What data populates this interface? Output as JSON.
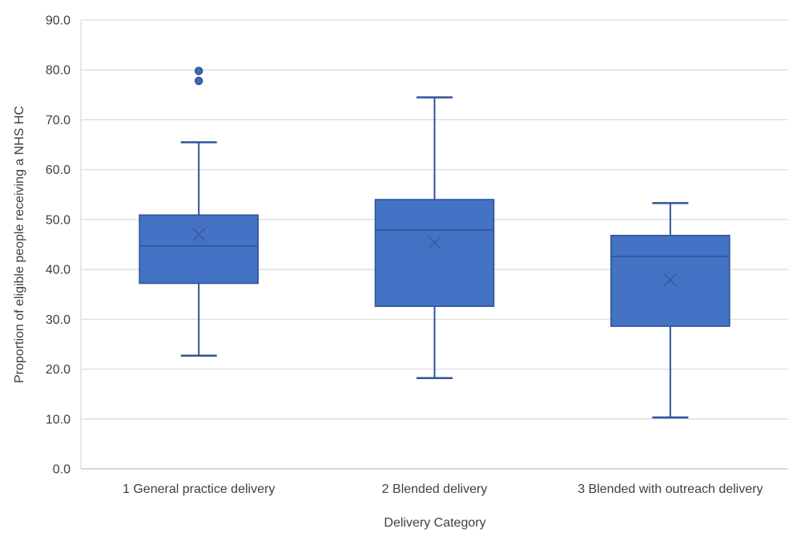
{
  "chart_data": {
    "type": "box",
    "title": "",
    "xlabel": "Delivery Category",
    "ylabel": "Proportion of eligible people receiving a NHS HC",
    "categories": [
      "1 General practice delivery",
      "2 Blended delivery",
      "3 Blended with outreach delivery"
    ],
    "y_axis": {
      "min": 0,
      "max": 90,
      "tick_step": 10,
      "tick_decimals": 1
    },
    "grid": "horizontal",
    "legend": "none",
    "boxes": [
      {
        "category": "1 General practice delivery",
        "whisker_low": 22.7,
        "q1": 37.2,
        "median": 44.7,
        "q3": 50.9,
        "whisker_high": 65.5,
        "mean": 47.0,
        "outliers": [
          77.8,
          79.8
        ]
      },
      {
        "category": "2 Blended delivery",
        "whisker_low": 18.2,
        "q1": 32.6,
        "median": 47.9,
        "q3": 54.0,
        "whisker_high": 74.5,
        "mean": 45.4,
        "outliers": []
      },
      {
        "category": "3 Blended with outreach delivery",
        "whisker_low": 10.3,
        "q1": 28.6,
        "median": 42.6,
        "q3": 46.8,
        "whisker_high": 53.3,
        "mean": 37.9,
        "outliers": []
      }
    ],
    "colors": {
      "box_fill": "#4472C4",
      "box_border": "#2F5597",
      "whisker": "#2F5597",
      "median": "#2F5597",
      "mean_marker": "#3A5B96",
      "outlier_fill": "#3E6AB8",
      "outlier_border": "#2F5597",
      "gridline": "#D9D9D9",
      "axis_line": "#D9D9D9",
      "text": "#404040"
    }
  }
}
